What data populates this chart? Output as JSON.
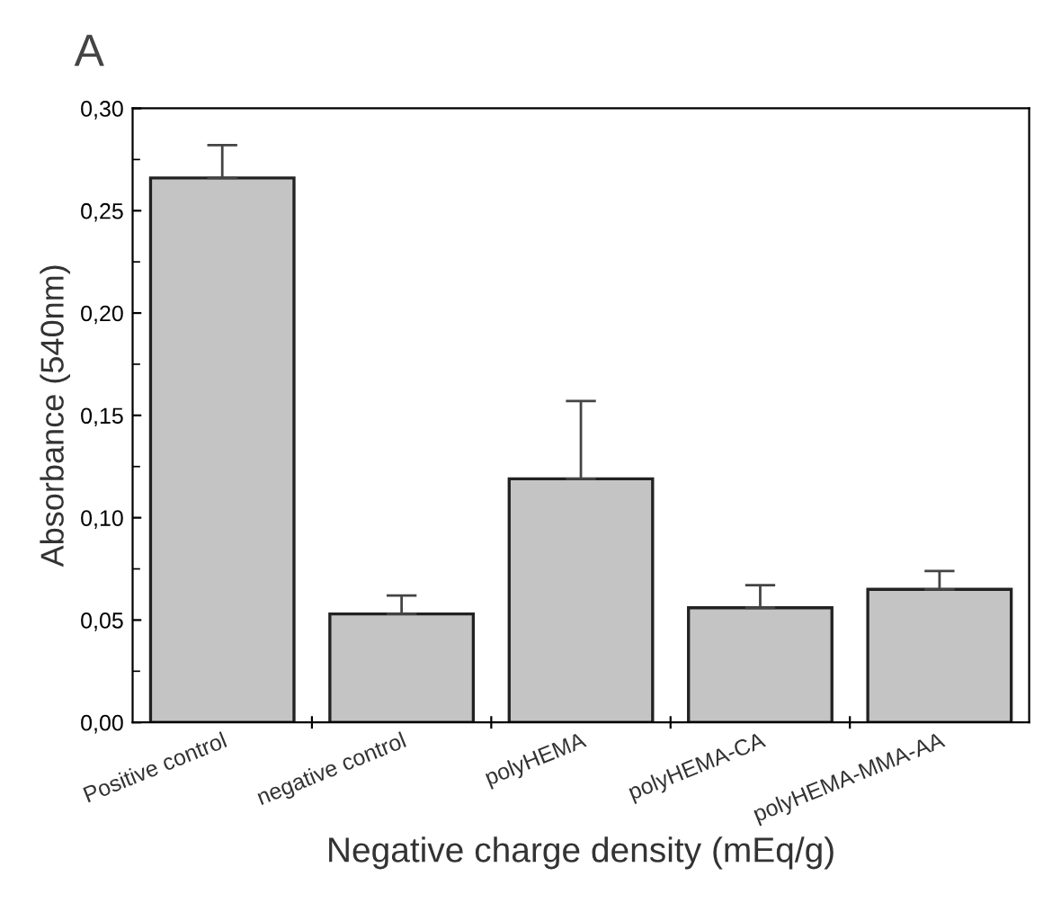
{
  "chart_data": {
    "type": "bar",
    "title": "A",
    "xlabel": "Negative charge density (mEq/g)",
    "ylabel": "Absorbance (540nm)",
    "categories": [
      "Positive control",
      "negative control",
      "polyHEMA",
      "polyHEMA-CA",
      "polyHEMA-MMA-AA"
    ],
    "values": [
      0.266,
      0.053,
      0.119,
      0.056,
      0.065
    ],
    "errors": [
      [
        0.266,
        0.282
      ],
      [
        0.053,
        0.062
      ],
      [
        0.119,
        0.157
      ],
      [
        0.056,
        0.067
      ],
      [
        0.065,
        0.074
      ]
    ],
    "color": "#c4c4c4",
    "ylim": [
      0,
      0.3
    ],
    "yticks": [
      {
        "value": 0,
        "label": "0,00"
      },
      {
        "value": 0.05,
        "label": "0,05"
      },
      {
        "value": 0.1,
        "label": "0,10"
      },
      {
        "value": 0.15,
        "label": "0,15"
      },
      {
        "value": 0.2,
        "label": "0,20"
      },
      {
        "value": 0.25,
        "label": "0,25"
      },
      {
        "value": 0.3,
        "label": "0,30"
      }
    ],
    "grid": false,
    "legend": false
  }
}
